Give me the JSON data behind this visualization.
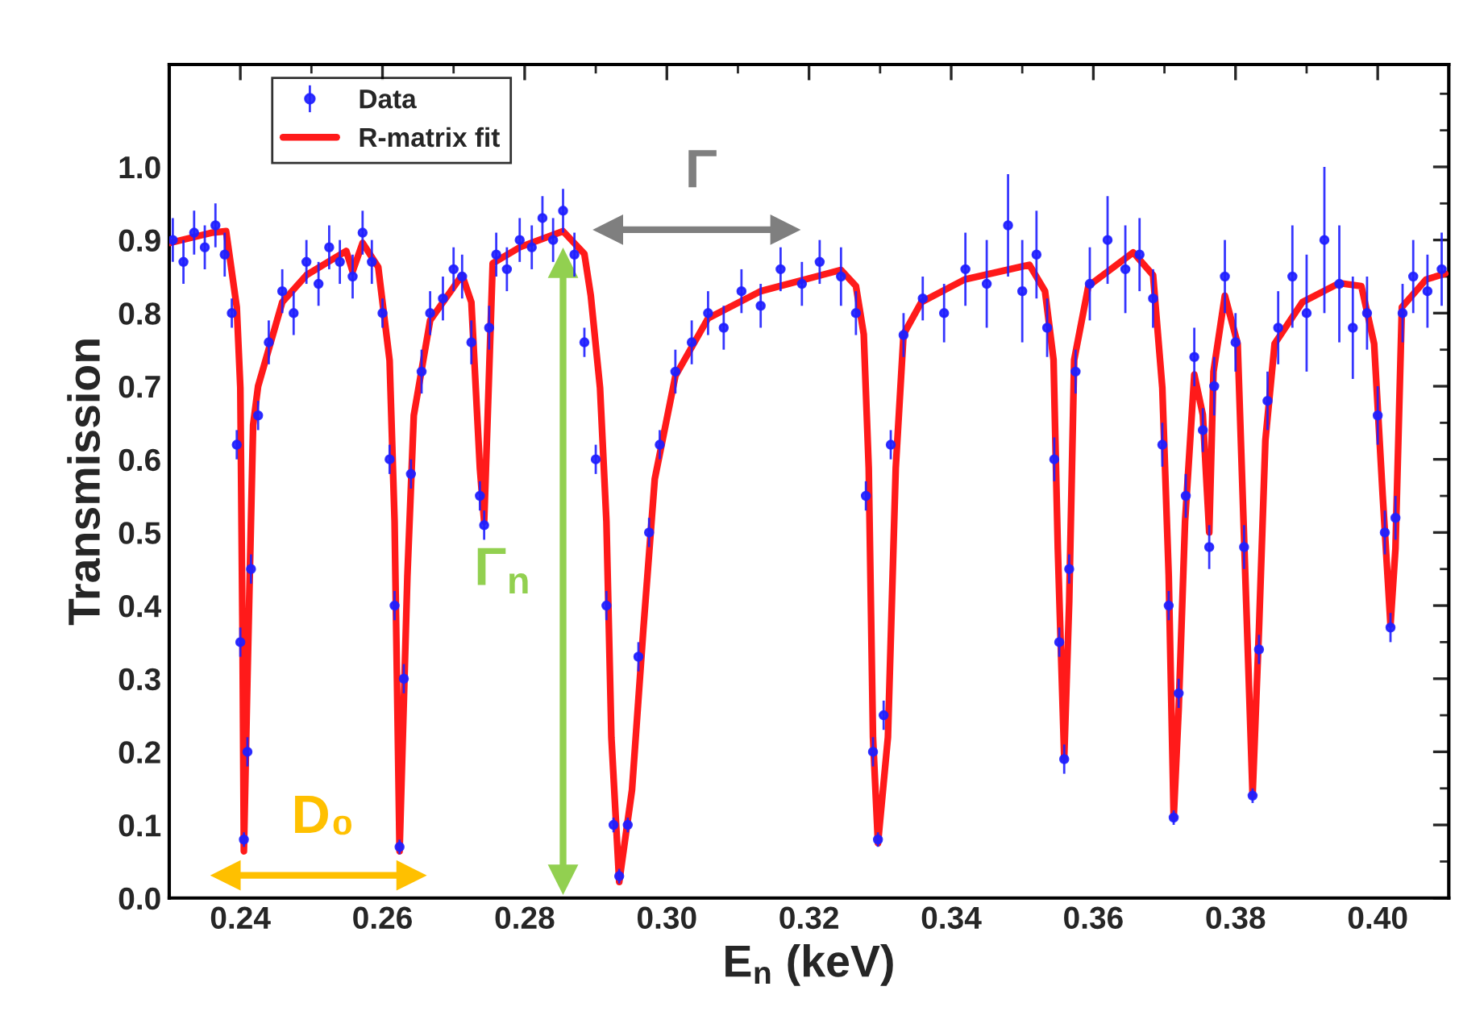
{
  "chart_data": {
    "type": "line",
    "xlabel": "E$_{n}$ (keV)",
    "ylabel": "Transmission",
    "xlim": [
      0.23,
      0.41
    ],
    "ylim": [
      0,
      1.14
    ],
    "xticks": [
      {
        "value": 0.24,
        "label": "0.24"
      },
      {
        "value": 0.26,
        "label": "0.26"
      },
      {
        "value": 0.28,
        "label": "0.28"
      },
      {
        "value": 0.3,
        "label": "0.30"
      },
      {
        "value": 0.32,
        "label": "0.32"
      },
      {
        "value": 0.34,
        "label": "0.34"
      },
      {
        "value": 0.36,
        "label": "0.36"
      },
      {
        "value": 0.38,
        "label": "0.38"
      },
      {
        "value": 0.4,
        "label": "0.40"
      }
    ],
    "yticks": [
      {
        "value": 0,
        "label": "0.0"
      },
      {
        "value": 0.1,
        "label": "0.1"
      },
      {
        "value": 0.2,
        "label": "0.2"
      },
      {
        "value": 0.3,
        "label": "0.3"
      },
      {
        "value": 0.4,
        "label": "0.4"
      },
      {
        "value": 0.5,
        "label": "0.5"
      },
      {
        "value": 0.6,
        "label": "0.6"
      },
      {
        "value": 0.7,
        "label": "0.7"
      },
      {
        "value": 0.8,
        "label": "0.8"
      },
      {
        "value": 0.9,
        "label": "0.9"
      },
      {
        "value": 1.0,
        "label": "1.0"
      }
    ],
    "grid": false,
    "legend": "top left",
    "line_style": "solid",
    "series": [
      {
        "name": "Data",
        "type": "scatter",
        "marker": "circle",
        "color": "#1f1fff",
        "x": [
          0.2305,
          0.232,
          0.2335,
          0.235,
          0.2365,
          0.2378,
          0.2388,
          0.2395,
          0.24,
          0.2405,
          0.241,
          0.2415,
          0.2425,
          0.244,
          0.2459,
          0.2475,
          0.2493,
          0.251,
          0.2525,
          0.254,
          0.2558,
          0.2572,
          0.2585,
          0.26,
          0.261,
          0.2617,
          0.2624,
          0.263,
          0.264,
          0.2655,
          0.2667,
          0.2685,
          0.27,
          0.2712,
          0.2725,
          0.2737,
          0.2743,
          0.275,
          0.276,
          0.2775,
          0.2793,
          0.281,
          0.2825,
          0.284,
          0.2854,
          0.287,
          0.2884,
          0.29,
          0.2915,
          0.2925,
          0.2933,
          0.2945,
          0.296,
          0.2975,
          0.299,
          0.3012,
          0.3035,
          0.3058,
          0.308,
          0.3105,
          0.3132,
          0.316,
          0.319,
          0.3215,
          0.3245,
          0.3266,
          0.328,
          0.329,
          0.3297,
          0.3305,
          0.3315,
          0.3333,
          0.336,
          0.339,
          0.342,
          0.345,
          0.348,
          0.35,
          0.352,
          0.3535,
          0.3545,
          0.3552,
          0.3559,
          0.3566,
          0.3575,
          0.3595,
          0.362,
          0.3645,
          0.3665,
          0.3684,
          0.3697,
          0.3706,
          0.3713,
          0.372,
          0.373,
          0.3742,
          0.3754,
          0.3763,
          0.377,
          0.3785,
          0.38,
          0.3812,
          0.3824,
          0.3833,
          0.3845,
          0.386,
          0.388,
          0.39,
          0.3925,
          0.3946,
          0.3965,
          0.3985,
          0.4,
          0.401,
          0.4018,
          0.4025,
          0.4035,
          0.405,
          0.407,
          0.409
        ],
        "values": [
          0.9,
          0.87,
          0.91,
          0.89,
          0.92,
          0.88,
          0.8,
          0.62,
          0.35,
          0.08,
          0.2,
          0.45,
          0.66,
          0.76,
          0.83,
          0.8,
          0.87,
          0.84,
          0.89,
          0.87,
          0.85,
          0.91,
          0.87,
          0.8,
          0.6,
          0.4,
          0.07,
          0.3,
          0.58,
          0.72,
          0.8,
          0.82,
          0.86,
          0.85,
          0.76,
          0.55,
          0.51,
          0.78,
          0.88,
          0.86,
          0.9,
          0.89,
          0.93,
          0.9,
          0.94,
          0.88,
          0.76,
          0.6,
          0.4,
          0.1,
          0.03,
          0.1,
          0.33,
          0.5,
          0.62,
          0.72,
          0.76,
          0.8,
          0.78,
          0.83,
          0.81,
          0.86,
          0.84,
          0.87,
          0.85,
          0.8,
          0.55,
          0.2,
          0.08,
          0.25,
          0.62,
          0.77,
          0.82,
          0.8,
          0.86,
          0.84,
          0.92,
          0.83,
          0.88,
          0.78,
          0.6,
          0.35,
          0.19,
          0.45,
          0.72,
          0.84,
          0.9,
          0.86,
          0.88,
          0.82,
          0.62,
          0.4,
          0.11,
          0.28,
          0.55,
          0.74,
          0.64,
          0.48,
          0.7,
          0.85,
          0.76,
          0.48,
          0.14,
          0.34,
          0.68,
          0.78,
          0.85,
          0.8,
          0.9,
          0.84,
          0.78,
          0.8,
          0.66,
          0.5,
          0.37,
          0.52,
          0.8,
          0.85,
          0.83,
          0.86
        ],
        "errors": [
          0.03,
          0.03,
          0.03,
          0.03,
          0.03,
          0.03,
          0.02,
          0.02,
          0.02,
          0.01,
          0.02,
          0.02,
          0.02,
          0.03,
          0.03,
          0.03,
          0.03,
          0.03,
          0.03,
          0.03,
          0.03,
          0.03,
          0.03,
          0.02,
          0.02,
          0.02,
          0.01,
          0.02,
          0.02,
          0.03,
          0.03,
          0.03,
          0.03,
          0.03,
          0.03,
          0.02,
          0.02,
          0.03,
          0.03,
          0.03,
          0.03,
          0.03,
          0.03,
          0.03,
          0.03,
          0.03,
          0.02,
          0.02,
          0.02,
          0.01,
          0.01,
          0.01,
          0.02,
          0.02,
          0.02,
          0.03,
          0.03,
          0.03,
          0.03,
          0.03,
          0.03,
          0.03,
          0.03,
          0.03,
          0.04,
          0.03,
          0.02,
          0.02,
          0.01,
          0.02,
          0.02,
          0.03,
          0.03,
          0.04,
          0.05,
          0.06,
          0.07,
          0.07,
          0.06,
          0.04,
          0.03,
          0.02,
          0.02,
          0.02,
          0.03,
          0.05,
          0.06,
          0.06,
          0.05,
          0.04,
          0.03,
          0.02,
          0.01,
          0.02,
          0.03,
          0.04,
          0.03,
          0.03,
          0.04,
          0.05,
          0.04,
          0.03,
          0.01,
          0.02,
          0.04,
          0.05,
          0.07,
          0.08,
          0.1,
          0.08,
          0.07,
          0.05,
          0.04,
          0.03,
          0.02,
          0.03,
          0.04,
          0.05,
          0.05,
          0.05
        ]
      },
      {
        "name": "R-matrix fit",
        "marker": "none",
        "color": "#ff1a1a",
        "x": [
          0.2301,
          0.236,
          0.238,
          0.2395,
          0.24,
          0.2403,
          0.2405,
          0.241,
          0.2418,
          0.2425,
          0.2459,
          0.2493,
          0.2549,
          0.2558,
          0.2572,
          0.2594,
          0.261,
          0.2617,
          0.2624,
          0.2635,
          0.2644,
          0.2667,
          0.2712,
          0.2725,
          0.2737,
          0.2743,
          0.2748,
          0.2755,
          0.2793,
          0.2854,
          0.2884,
          0.2893,
          0.2906,
          0.2915,
          0.2922,
          0.2933,
          0.2951,
          0.2967,
          0.2983,
          0.3012,
          0.3058,
          0.3132,
          0.3245,
          0.3266,
          0.3277,
          0.3284,
          0.329,
          0.3297,
          0.3311,
          0.3322,
          0.3333,
          0.3358,
          0.3419,
          0.351,
          0.3532,
          0.3544,
          0.355,
          0.3559,
          0.3566,
          0.3573,
          0.3593,
          0.3656,
          0.3684,
          0.3697,
          0.3706,
          0.3713,
          0.372,
          0.3729,
          0.3742,
          0.3754,
          0.3763,
          0.3769,
          0.3785,
          0.3803,
          0.3815,
          0.3824,
          0.3833,
          0.3842,
          0.3855,
          0.3894,
          0.3946,
          0.3977,
          0.3995,
          0.4007,
          0.4018,
          0.4025,
          0.4034,
          0.4068,
          0.4095
        ],
        "values": [
          0.896,
          0.91,
          0.912,
          0.808,
          0.698,
          0.368,
          0.064,
          0.3,
          0.647,
          0.7,
          0.815,
          0.852,
          0.885,
          0.857,
          0.896,
          0.863,
          0.735,
          0.515,
          0.064,
          0.44,
          0.66,
          0.79,
          0.852,
          0.815,
          0.588,
          0.515,
          0.66,
          0.868,
          0.89,
          0.912,
          0.881,
          0.824,
          0.698,
          0.515,
          0.22,
          0.022,
          0.148,
          0.368,
          0.573,
          0.714,
          0.793,
          0.83,
          0.859,
          0.837,
          0.771,
          0.588,
          0.22,
          0.075,
          0.22,
          0.588,
          0.771,
          0.815,
          0.846,
          0.866,
          0.83,
          0.736,
          0.478,
          0.192,
          0.405,
          0.736,
          0.837,
          0.883,
          0.852,
          0.698,
          0.441,
          0.11,
          0.258,
          0.515,
          0.716,
          0.661,
          0.5,
          0.72,
          0.824,
          0.758,
          0.405,
          0.141,
          0.368,
          0.626,
          0.758,
          0.815,
          0.841,
          0.837,
          0.758,
          0.551,
          0.374,
          0.478,
          0.808,
          0.846,
          0.854
        ]
      },
      {
        "name": "Γ",
        "marker": "triangle",
        "color": "#7f7f7f",
        "x": [
          0.2918,
          0.3166
        ],
        "values": [
          0.914,
          0.914
        ]
      },
      {
        "name": "Γ$_{n}$",
        "marker": "triangle",
        "color": "#92d050",
        "x": [
          0.2854,
          0.2854
        ],
        "values": [
          0.868,
          0.026
        ]
      },
      {
        "name": "D₀",
        "marker": "triangle",
        "color": "#ffc000",
        "x": [
          0.238,
          0.264
        ],
        "values": [
          0.031,
          0.031
        ]
      }
    ]
  }
}
